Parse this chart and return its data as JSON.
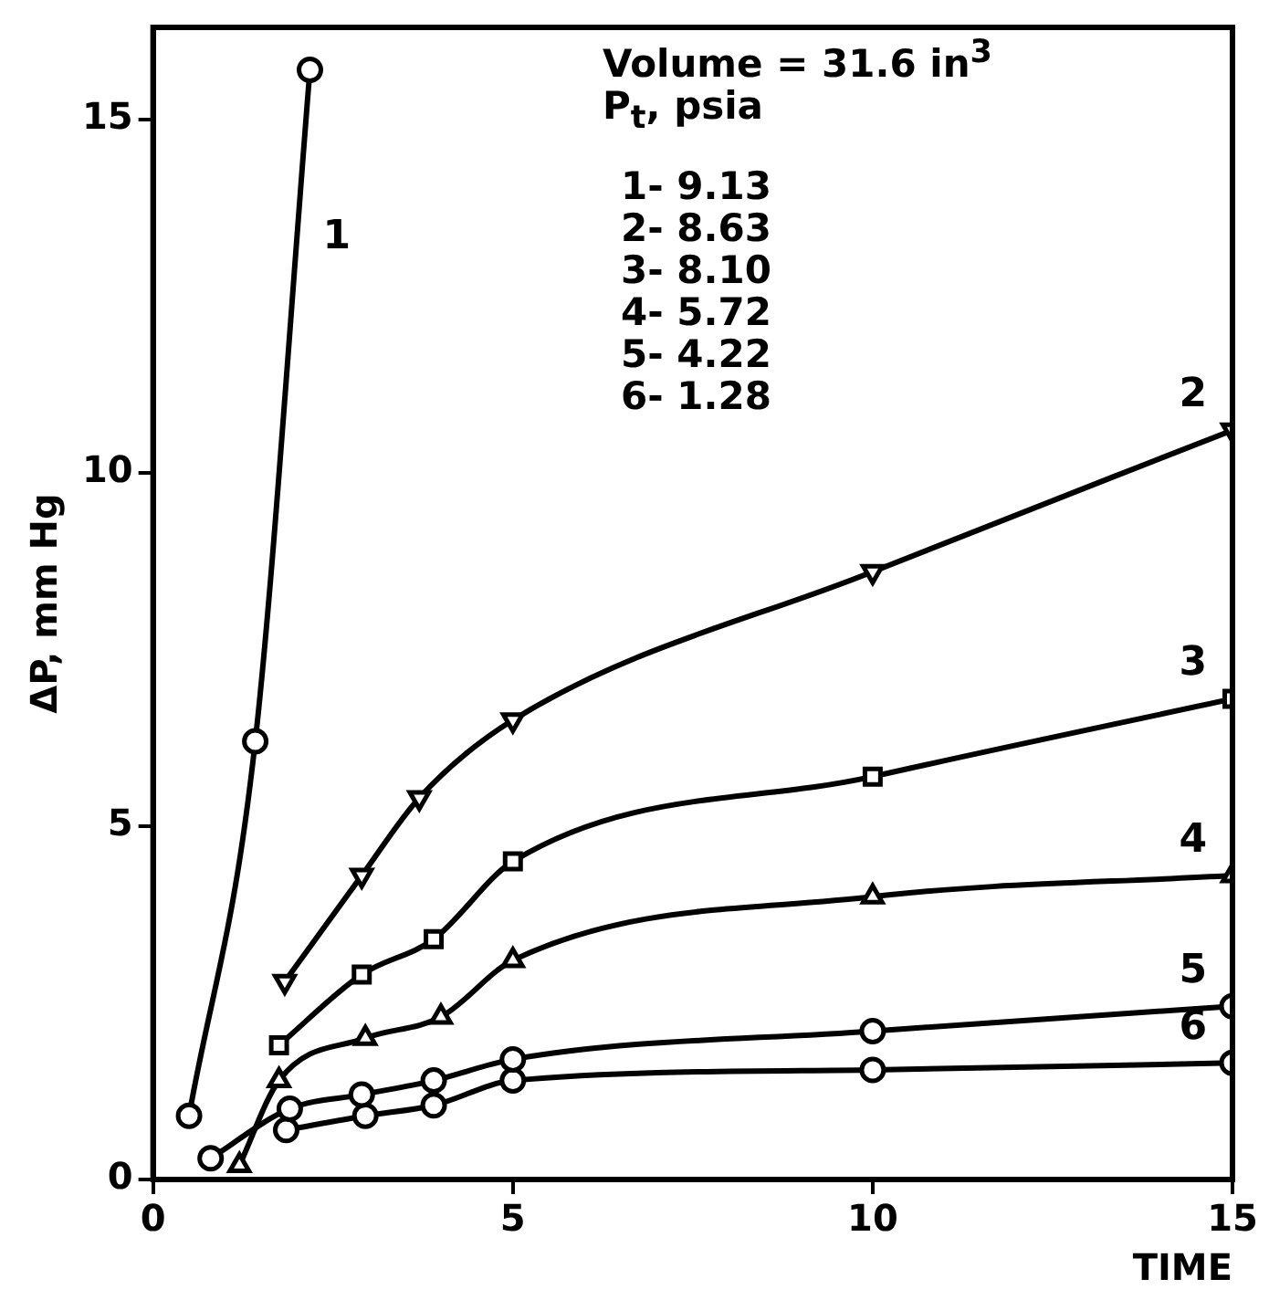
{
  "chart_data": {
    "type": "line",
    "xlabel": "TIME",
    "ylabel": "ΔP, mm Hg",
    "annotations": [
      "Volume = 31.6 in$^{3}$",
      "P$_{t}$, psia",
      "1- 9.13",
      "2- 8.63",
      "3- 8.10",
      "4- 5.72",
      "5- 4.22",
      "6- 1.28"
    ],
    "xlim": [
      0,
      15
    ],
    "ylim": [
      0,
      16.3
    ],
    "xticks": [
      0,
      5,
      10,
      15
    ],
    "yticks": [
      0,
      5,
      10,
      15
    ],
    "grid": false,
    "legend": false,
    "line_style": "solid",
    "series": [
      {
        "name": "1",
        "color": "#000000",
        "marker": "circle",
        "x": [
          0.5,
          1.42,
          2.18
        ],
        "values": [
          0.9,
          6.2,
          15.7
        ]
      },
      {
        "name": "2",
        "color": "#000000",
        "marker": "triangle-down",
        "x": [
          1.83,
          2.9,
          3.7,
          5,
          10,
          15
        ],
        "values": [
          2.8,
          4.3,
          5.4,
          6.5,
          8.6,
          10.6
        ]
      },
      {
        "name": "3",
        "color": "#000000",
        "marker": "square",
        "x": [
          1.75,
          2.9,
          3.9,
          5,
          10,
          15
        ],
        "values": [
          1.9,
          2.9,
          3.4,
          4.5,
          5.7,
          6.8
        ]
      },
      {
        "name": "4",
        "color": "#000000",
        "marker": "triangle",
        "x": [
          1.2,
          1.75,
          2.95,
          4,
          5,
          10,
          15
        ],
        "values": [
          0.2,
          1.4,
          2.0,
          2.3,
          3.1,
          4.0,
          4.3
        ]
      },
      {
        "name": "5",
        "color": "#000000",
        "marker": "circle",
        "x": [
          0.8,
          1.9,
          2.9,
          3.9,
          5,
          10,
          15
        ],
        "values": [
          0.3,
          1.0,
          1.2,
          1.4,
          1.7,
          2.1,
          2.45
        ]
      },
      {
        "name": "6",
        "color": "#000000",
        "marker": "circle",
        "x": [
          1.85,
          2.95,
          3.9,
          5,
          10,
          15
        ],
        "values": [
          0.7,
          0.9,
          1.05,
          1.4,
          1.55,
          1.65
        ]
      }
    ]
  }
}
